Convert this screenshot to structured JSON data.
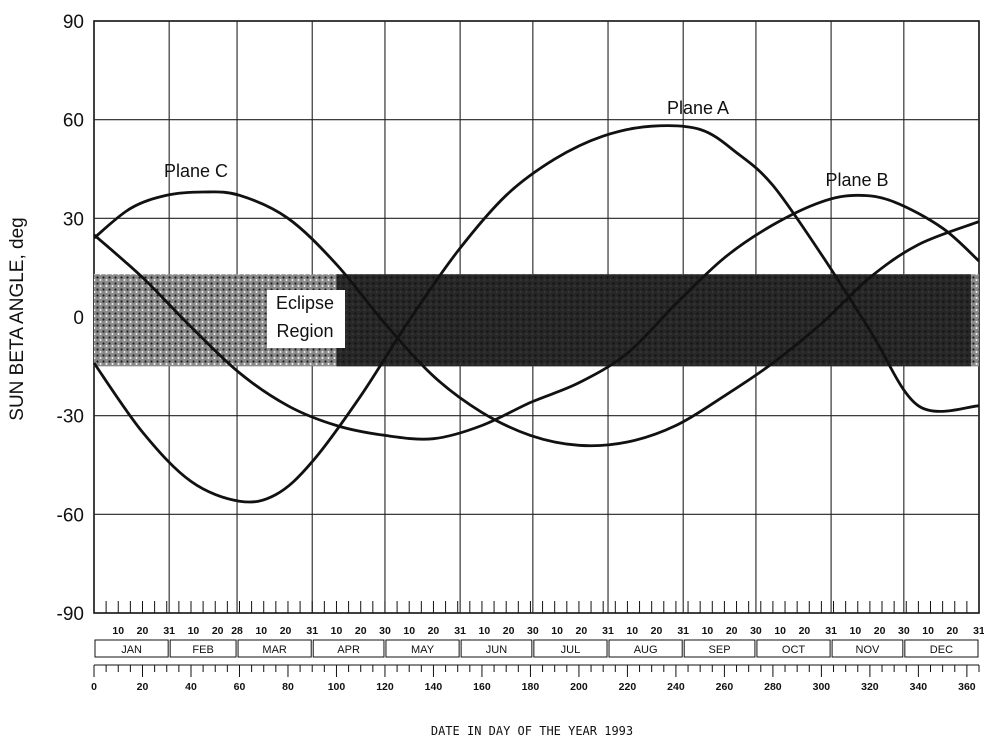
{
  "chart_data": {
    "type": "line",
    "xlabel": "DATE IN DAY OF THE YEAR 1993",
    "ylabel": "SUN BETA ANGLE, deg",
    "xlim": [
      0,
      365
    ],
    "ylim": [
      -90,
      90
    ],
    "y_ticks": [
      "90",
      "60",
      "30",
      "0",
      "-30",
      "-60",
      "-90"
    ],
    "grid": true,
    "months": [
      "JAN",
      "FEB",
      "MAR",
      "APR",
      "MAY",
      "JUN",
      "JUL",
      "AUG",
      "SEP",
      "OCT",
      "NOV",
      "DEC"
    ],
    "day_of_month_ticks": [
      [
        "10",
        "20",
        "31"
      ],
      [
        "10",
        "20",
        "28"
      ],
      [
        "10",
        "20",
        "31"
      ],
      [
        "10",
        "20",
        "30"
      ],
      [
        "10",
        "20",
        "31"
      ],
      [
        "10",
        "20",
        "30"
      ],
      [
        "10",
        "20",
        "31"
      ],
      [
        "10",
        "20",
        "31"
      ],
      [
        "10",
        "20",
        "30"
      ],
      [
        "10",
        "20",
        "31"
      ],
      [
        "10",
        "20",
        "30"
      ],
      [
        "10",
        "20",
        "31"
      ]
    ],
    "day_of_year_ticks": [
      "0",
      "20",
      "40",
      "60",
      "80",
      "100",
      "120",
      "140",
      "160",
      "180",
      "200",
      "220",
      "240",
      "260",
      "280",
      "300",
      "320",
      "340",
      "360"
    ],
    "shaded_region": {
      "label_line1": "Eclipse",
      "label_line2": "Region",
      "ymin": -15,
      "ymax": 13
    },
    "series": [
      {
        "name": "Plane A",
        "x": [
          0,
          20,
          40,
          60,
          75,
          90,
          110,
          130,
          150,
          170,
          190,
          210,
          230,
          250,
          265,
          280,
          300,
          320,
          340,
          365
        ],
        "y": [
          -14,
          -35,
          -50,
          -56,
          -54,
          -44,
          -24,
          -1,
          20,
          37,
          48,
          55,
          58,
          57,
          50,
          40,
          19,
          -4,
          -27,
          -27
        ]
      },
      {
        "name": "Plane B",
        "x": [
          0,
          20,
          40,
          60,
          80,
          100,
          120,
          140,
          160,
          180,
          200,
          220,
          240,
          260,
          280,
          300,
          315,
          330,
          350,
          365
        ],
        "y": [
          25,
          12,
          -3,
          -17,
          -27,
          -33,
          -36,
          -37,
          -33,
          -26,
          -20,
          -11,
          4,
          18,
          28,
          35,
          37,
          35,
          27,
          17
        ]
      },
      {
        "name": "Plane C",
        "x": [
          0,
          15,
          30,
          45,
          60,
          80,
          100,
          120,
          140,
          160,
          180,
          200,
          220,
          240,
          260,
          280,
          300,
          320,
          340,
          365
        ],
        "y": [
          24,
          33,
          37,
          38,
          37,
          30,
          16,
          -2,
          -18,
          -29,
          -36,
          -39,
          -38,
          -33,
          -24,
          -14,
          -2,
          12,
          22,
          29
        ]
      }
    ]
  }
}
